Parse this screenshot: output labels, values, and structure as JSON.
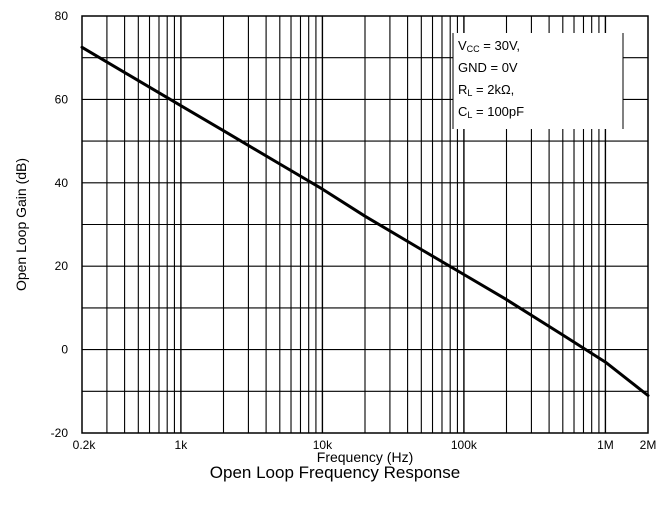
{
  "chart_data": {
    "type": "line",
    "title": "Open Loop Frequency Response",
    "xlabel": "Frequency (Hz)",
    "ylabel": "Open Loop Gain (dB)",
    "x_scale": "log",
    "xlim": [
      200,
      2000000
    ],
    "ylim": [
      -20,
      80
    ],
    "grid": true,
    "x_tick_values": [
      200,
      1000,
      10000,
      100000,
      1000000,
      2000000
    ],
    "x_tick_labels": [
      "0.2k",
      "1k",
      "10k",
      "100k",
      "1M",
      "2M"
    ],
    "y_tick_values": [
      -20,
      0,
      20,
      40,
      60,
      80
    ],
    "y_tick_labels": [
      "-20",
      "0",
      "20",
      "40",
      "60",
      "80"
    ],
    "series": [
      {
        "x": [
          200,
          500,
          1000,
          2000,
          5000,
          10000,
          20000,
          50000,
          100000,
          200000,
          500000,
          1000000,
          2000000
        ],
        "y": [
          72.5,
          64.5,
          58.5,
          52.5,
          44.5,
          38.5,
          32,
          24,
          18,
          12,
          3.5,
          -3,
          -11
        ],
        "color": "#000000"
      }
    ],
    "annotation": {
      "lines": [
        {
          "main": "V",
          "sub": "CC",
          "rest": " = 30V,"
        },
        {
          "main": "GND = 0V",
          "sub": "",
          "rest": ""
        },
        {
          "main": "R",
          "sub": "L",
          "rest": " = 2kΩ,"
        },
        {
          "main": "C",
          "sub": "L",
          "rest": " = 100pF"
        }
      ]
    }
  }
}
